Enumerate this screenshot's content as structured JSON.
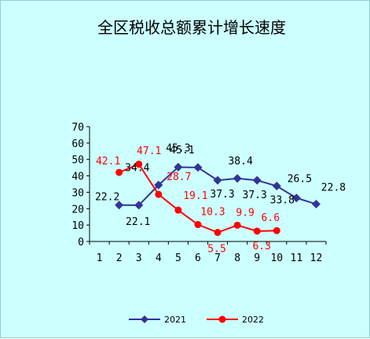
{
  "chart_data": {
    "type": "line",
    "title": "全区税收总额累计增长速度",
    "xlabel": "",
    "ylabel": "",
    "categories": [
      "1",
      "2",
      "3",
      "4",
      "5",
      "6",
      "7",
      "8",
      "9",
      "10",
      "11",
      "12"
    ],
    "ylim": [
      0,
      70
    ],
    "yticks": [
      "0",
      "10",
      "20",
      "30",
      "40",
      "50",
      "60",
      "70"
    ],
    "grid": false,
    "legend_position": "bottom",
    "series": [
      {
        "name": "2021",
        "color": "#333399",
        "marker": "diamond",
        "x": [
          2,
          3,
          4,
          5,
          6,
          7,
          8,
          9,
          10,
          11,
          12
        ],
        "values": [
          22.2,
          22.1,
          34.4,
          45.3,
          45.1,
          37.3,
          38.4,
          37.3,
          33.8,
          26.5,
          22.8
        ],
        "labels": [
          "22.2",
          "22.1",
          "34.4",
          "45.3",
          "45.1",
          "37.3",
          "38.4",
          "37.3",
          "33.8",
          "26.5",
          "22.8"
        ]
      },
      {
        "name": "2022",
        "color": "#ff0000",
        "marker": "circle",
        "x": [
          2,
          3,
          4,
          5,
          6,
          7,
          8,
          9,
          10
        ],
        "values": [
          42.1,
          47.1,
          28.7,
          19.1,
          10.3,
          5.5,
          9.9,
          6.3,
          6.6
        ],
        "labels": [
          "42.1",
          "47.1",
          "28.7",
          "19.1",
          "10.3",
          "5.5",
          "9.9",
          "6.3",
          "6.6"
        ]
      }
    ]
  }
}
